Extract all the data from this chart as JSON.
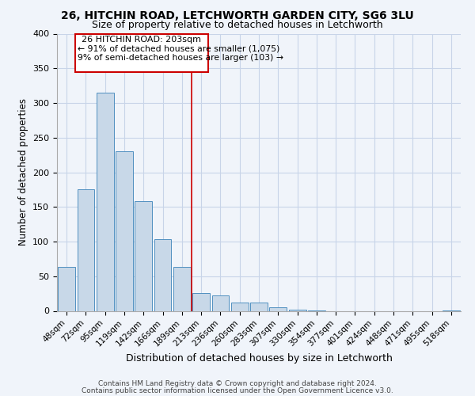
{
  "title": "26, HITCHIN ROAD, LETCHWORTH GARDEN CITY, SG6 3LU",
  "subtitle": "Size of property relative to detached houses in Letchworth",
  "xlabel": "Distribution of detached houses by size in Letchworth",
  "ylabel": "Number of detached properties",
  "bar_labels": [
    "48sqm",
    "72sqm",
    "95sqm",
    "119sqm",
    "142sqm",
    "166sqm",
    "189sqm",
    "213sqm",
    "236sqm",
    "260sqm",
    "283sqm",
    "307sqm",
    "330sqm",
    "354sqm",
    "377sqm",
    "401sqm",
    "424sqm",
    "448sqm",
    "471sqm",
    "495sqm",
    "518sqm"
  ],
  "bar_values": [
    63,
    175,
    315,
    230,
    158,
    103,
    63,
    26,
    22,
    12,
    12,
    5,
    2,
    1,
    0,
    0,
    0,
    0,
    0,
    0,
    1
  ],
  "bar_color": "#c8d8e8",
  "bar_edge_color": "#5090c0",
  "vline_index": 7,
  "marker_label": "26 HITCHIN ROAD: 203sqm",
  "annotation_line1": "← 91% of detached houses are smaller (1,075)",
  "annotation_line2": "9% of semi-detached houses are larger (103) →",
  "annotation_box_color": "#cc0000",
  "vline_color": "#cc0000",
  "ylim": [
    0,
    400
  ],
  "yticks": [
    0,
    50,
    100,
    150,
    200,
    250,
    300,
    350,
    400
  ],
  "grid_color": "#c8d4e8",
  "background_color": "#f0f4fa",
  "footer_line1": "Contains HM Land Registry data © Crown copyright and database right 2024.",
  "footer_line2": "Contains public sector information licensed under the Open Government Licence v3.0."
}
